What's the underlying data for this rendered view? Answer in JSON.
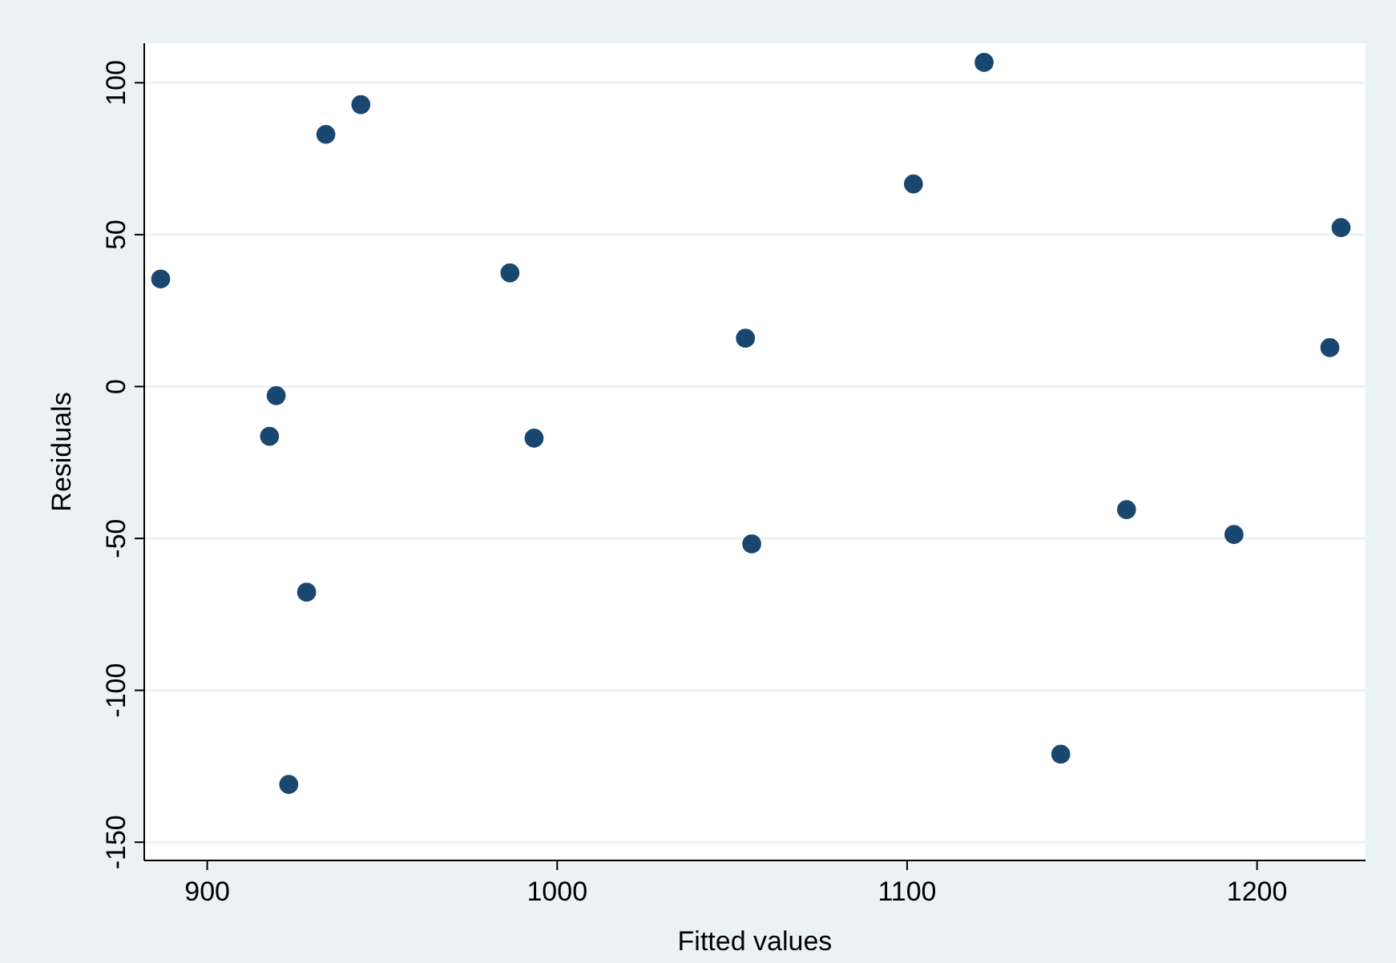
{
  "chart_data": {
    "type": "scatter",
    "xlabel": "Fitted values",
    "ylabel": "Residuals",
    "x": [
      886.7,
      919.7,
      917.8,
      933.9,
      943.9,
      928.4,
      923.3,
      986.5,
      993.4,
      1053.8,
      1055.6,
      1101.8,
      1122,
      1143.9,
      1162.7,
      1193.4,
      1220.8,
      1224
    ],
    "series": [
      {
        "color": "#1a476f",
        "values": [
          35.4,
          -3,
          -16.4,
          83,
          92.8,
          -67.7,
          -131,
          37.4,
          -17,
          15.9,
          -51.8,
          66.7,
          106.7,
          -121,
          -40.5,
          -48.7,
          12.8,
          52.3
        ]
      }
    ],
    "xlim": [
      882,
      1231
    ],
    "ylim": [
      -156,
      113
    ],
    "xticks": [
      900,
      1000,
      1100,
      1200
    ],
    "yticks": [
      -150,
      -100,
      -50,
      0,
      50,
      100
    ],
    "grid": "y",
    "marker": "circle"
  }
}
